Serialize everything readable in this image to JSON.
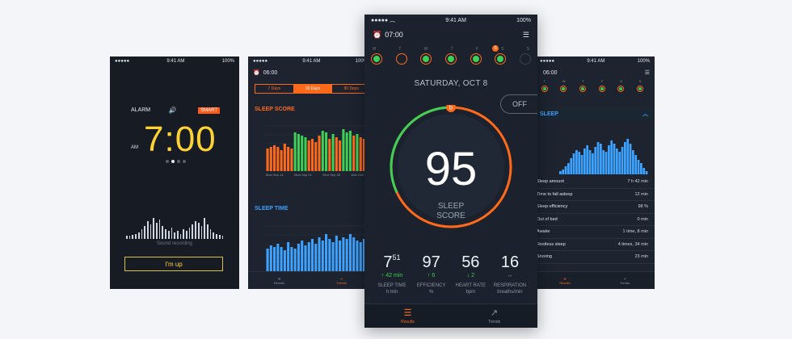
{
  "colors": {
    "accent": "#ff6a1a",
    "good": "#3ecf57",
    "blue": "#3ea2ff",
    "alarm": "#ffd233"
  },
  "alarm_phone": {
    "status": {
      "time": "9:41 AM",
      "battery": "100%"
    },
    "alarm_label": "ALARM",
    "smart_label": "SMART",
    "time": "7:00",
    "ampm": "AM",
    "wave_label": "Sound recording",
    "button": "I'm up",
    "icons": [
      "speaker-icon"
    ]
  },
  "trends_phone": {
    "status": {
      "time": "9:41 AM",
      "battery": "100%"
    },
    "alarm_time": "06:00",
    "segments": [
      "7 Days",
      "30 Days",
      "90 Days"
    ],
    "selected_segment": 1,
    "sleep_score_title": "SLEEP SCORE",
    "sleep_time_title": "SLEEP TIME",
    "score_xlabels": [
      "Mon Sep 14",
      "Mon Sep 21",
      "Mon Sep 28",
      "Mon Oct 5"
    ],
    "tabs": [
      "Results",
      "Trends"
    ]
  },
  "main_phone": {
    "status": {
      "time": "9:41 AM",
      "battery": "100%"
    },
    "alarm_time": "07:00",
    "days": [
      "M",
      "T",
      "W",
      "T",
      "F",
      "S",
      "S"
    ],
    "selected_day": 5,
    "date": "SATURDAY, OCT 8",
    "toggle": "OFF",
    "score": "95",
    "score_label_1": "SLEEP",
    "score_label_2": "SCORE",
    "score_value": 95,
    "stats": [
      {
        "main": "7",
        "sup": "51",
        "delta": "↑ 42 min",
        "delta_color": "green",
        "label1": "SLEEP TIME",
        "label2": "h:min"
      },
      {
        "main": "97",
        "sup": "",
        "delta": "↑ 6",
        "delta_color": "green",
        "label1": "EFFICIENCY",
        "label2": "%"
      },
      {
        "main": "56",
        "sup": "",
        "delta": "↓ 2",
        "delta_color": "green",
        "label1": "HEART RATE",
        "label2": "bpm"
      },
      {
        "main": "16",
        "sup": "",
        "delta": "↔",
        "delta_color": "muted",
        "label1": "RESPIRATION",
        "label2": "breaths/min"
      }
    ],
    "tabs": [
      "Results",
      "Trends"
    ]
  },
  "details_phone": {
    "status": {
      "time": "9:41 AM",
      "battery": "100%"
    },
    "alarm_time": "06:00",
    "days": [
      "T",
      "W",
      "T",
      "F",
      "S",
      "S"
    ],
    "sleep_title": "SLEEP",
    "rows": [
      {
        "label": "Sleep amount",
        "value": "7 h 42 min"
      },
      {
        "label": "Time to fall asleep",
        "value": "12 min"
      },
      {
        "label": "Sleep efficiency",
        "value": "98 %"
      },
      {
        "label": "Out of bed",
        "value": "0 min"
      },
      {
        "label": "Awake",
        "value": "1 time, 8 min"
      },
      {
        "label": "Restless sleep",
        "value": "4 times, 34 min"
      },
      {
        "label": "Snoring",
        "value": "23 min"
      }
    ],
    "tabs": [
      "Results",
      "Trends"
    ]
  }
}
